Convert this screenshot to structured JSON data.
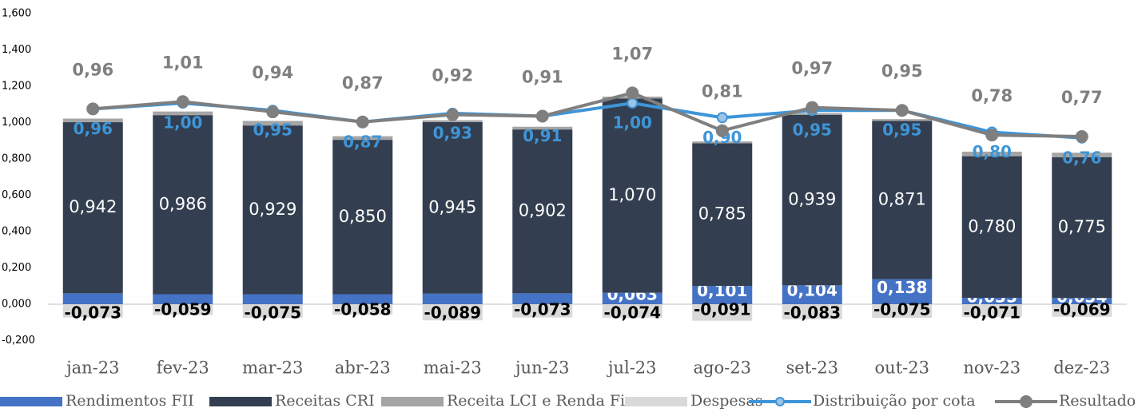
{
  "chart_data": {
    "type": "stacked-bar-line",
    "categories": [
      "jan-23",
      "fev-23",
      "mar-23",
      "abr-23",
      "mai-23",
      "jun-23",
      "jul-23",
      "ago-23",
      "set-23",
      "out-23",
      "nov-23",
      "dez-23"
    ],
    "ylim": [
      -0.2,
      1.6
    ],
    "yticks": [
      {
        "value": -0.2,
        "label": "-0,200"
      },
      {
        "value": 0,
        "label": "0,000"
      },
      {
        "value": 0.2,
        "label": "0,200"
      },
      {
        "value": 0.4,
        "label": "0,400"
      },
      {
        "value": 0.6,
        "label": "0,600"
      },
      {
        "value": 0.8,
        "label": "0,800"
      },
      {
        "value": 1.0,
        "label": "1,000"
      },
      {
        "value": 1.2,
        "label": "1,200"
      },
      {
        "value": 1.4,
        "label": "1,400"
      },
      {
        "value": 1.6,
        "label": "1,600"
      }
    ],
    "y2lim": [
      -0.634,
      1.616
    ],
    "series": [
      {
        "name": "Rendimentos FII",
        "kind": "bar",
        "color": "#4472c4",
        "values": [
          0.06,
          0.055,
          0.055,
          0.055,
          0.058,
          0.06,
          0.063,
          0.101,
          0.104,
          0.138,
          0.035,
          0.034
        ],
        "value_labels": [
          null,
          null,
          null,
          null,
          null,
          null,
          "0,063",
          "0,101",
          "0,104",
          "0,138",
          "0,035",
          "0,034"
        ]
      },
      {
        "name": "Receitas CRI",
        "kind": "bar",
        "color": "#333f50",
        "values": [
          0.942,
          0.986,
          0.929,
          0.85,
          0.945,
          0.902,
          1.07,
          0.785,
          0.939,
          0.871,
          0.78,
          0.775
        ],
        "value_labels": [
          "0,942",
          "0,986",
          "0,929",
          "0,850",
          "0,945",
          "0,902",
          "1,070",
          "0,785",
          "0,939",
          "0,871",
          "0,780",
          "0,775"
        ]
      },
      {
        "name": "Receita LCI e Renda Fixa",
        "kind": "bar",
        "color": "#a5a5a5",
        "values": [
          0.02,
          0.02,
          0.025,
          0.02,
          0.01,
          0.015,
          0.01,
          0.01,
          0.009,
          0.01,
          0.025,
          0.025
        ]
      },
      {
        "name": "Despesas",
        "kind": "bar",
        "color": "#d9d9d9",
        "values": [
          -0.073,
          -0.059,
          -0.075,
          -0.058,
          -0.089,
          -0.073,
          -0.074,
          -0.091,
          -0.083,
          -0.075,
          -0.071,
          -0.069
        ],
        "value_labels": [
          "-0,073",
          "-0,059",
          "-0,075",
          "-0,058",
          "-0,089",
          "-0,073",
          "-0,074",
          "-0,091",
          "-0,083",
          "-0,075",
          "-0,071",
          "-0,069"
        ]
      },
      {
        "name": "Distribuição por cota",
        "kind": "line",
        "axis": "y2",
        "color": "#3e95d8",
        "values": [
          0.96,
          1.0,
          0.95,
          0.87,
          0.93,
          0.91,
          1.0,
          0.9,
          0.95,
          0.95,
          0.8,
          0.76
        ],
        "value_labels": [
          "0,96",
          "1,00",
          "0,95",
          "0,87",
          "0,93",
          "0,91",
          "1,00",
          "0,90",
          "0,95",
          "0,95",
          "0,80",
          "0,76"
        ]
      },
      {
        "name": "Resultado",
        "kind": "line",
        "axis": "y2",
        "color": "#7f7f7f",
        "values": [
          0.96,
          1.01,
          0.94,
          0.87,
          0.92,
          0.91,
          1.07,
          0.81,
          0.97,
          0.95,
          0.78,
          0.77
        ],
        "value_labels": [
          "0,96",
          "1,01",
          "0,94",
          "0,87",
          "0,92",
          "0,91",
          "1,07",
          "0,81",
          "0,97",
          "0,95",
          "0,78",
          "0,77"
        ]
      }
    ],
    "legend": "bottom"
  }
}
